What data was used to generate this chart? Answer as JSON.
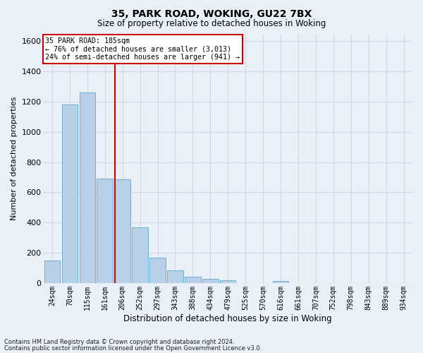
{
  "title1": "35, PARK ROAD, WOKING, GU22 7BX",
  "title2": "Size of property relative to detached houses in Woking",
  "xlabel": "Distribution of detached houses by size in Woking",
  "ylabel": "Number of detached properties",
  "categories": [
    "24sqm",
    "70sqm",
    "115sqm",
    "161sqm",
    "206sqm",
    "252sqm",
    "297sqm",
    "343sqm",
    "388sqm",
    "434sqm",
    "479sqm",
    "525sqm",
    "570sqm",
    "616sqm",
    "661sqm",
    "707sqm",
    "752sqm",
    "798sqm",
    "843sqm",
    "889sqm",
    "934sqm"
  ],
  "values": [
    148,
    1180,
    1260,
    690,
    685,
    370,
    170,
    82,
    40,
    28,
    20,
    0,
    0,
    15,
    0,
    0,
    0,
    0,
    0,
    0,
    0
  ],
  "bar_color": "#b8d0e8",
  "bar_edge_color": "#6aafd6",
  "vline_color": "#cc0000",
  "vline_pos": 3.58,
  "annotation_text": "35 PARK ROAD: 185sqm\n← 76% of detached houses are smaller (3,013)\n24% of semi-detached houses are larger (941) →",
  "annotation_box_color": "#ffffff",
  "annotation_box_edge": "#cc0000",
  "ylim": [
    0,
    1650
  ],
  "yticks": [
    0,
    200,
    400,
    600,
    800,
    1000,
    1200,
    1400,
    1600
  ],
  "footer1": "Contains HM Land Registry data © Crown copyright and database right 2024.",
  "footer2": "Contains public sector information licensed under the Open Government Licence v3.0.",
  "bg_color": "#eaf0f8",
  "grid_color": "#d0d8e8",
  "figsize": [
    6.0,
    5.0
  ],
  "dpi": 100
}
